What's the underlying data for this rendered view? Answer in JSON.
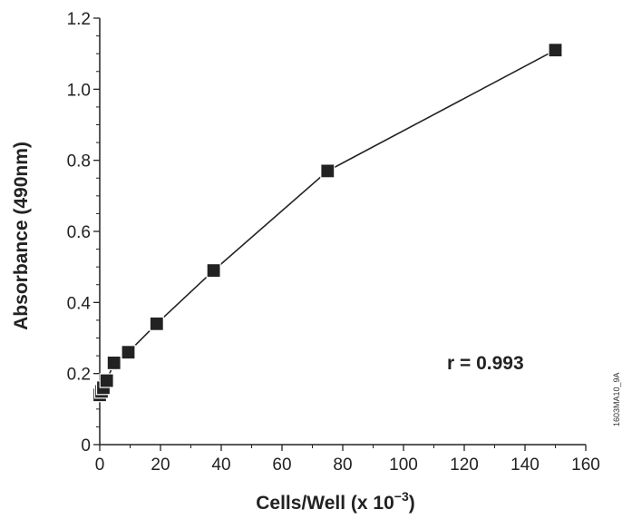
{
  "chart_data": {
    "type": "line",
    "title": "",
    "xlabel": "Cells/Well (x 10",
    "xlabel_sup": "−3",
    "xlabel_suffix": ")",
    "ylabel": "Absorbance (490nm)",
    "xlim": [
      0,
      160
    ],
    "ylim": [
      0,
      1.2
    ],
    "x_ticks": [
      "0",
      "20",
      "40",
      "60",
      "80",
      "100",
      "120",
      "140",
      "160"
    ],
    "y_ticks": [
      "0",
      "0.2",
      "0.4",
      "0.6",
      "0.8",
      "1.0",
      "1.2"
    ],
    "grid": false,
    "marker": "square",
    "color": "#222222",
    "series": [
      {
        "x": [
          0,
          0.6,
          1.2,
          2.3,
          4.7,
          9.4,
          18.75,
          37.5,
          75,
          150
        ],
        "y": [
          0.14,
          0.15,
          0.16,
          0.18,
          0.23,
          0.26,
          0.34,
          0.49,
          0.77,
          1.11
        ]
      }
    ],
    "annotation": "r = 0.993",
    "figure_id": "1603MA10_9A"
  }
}
